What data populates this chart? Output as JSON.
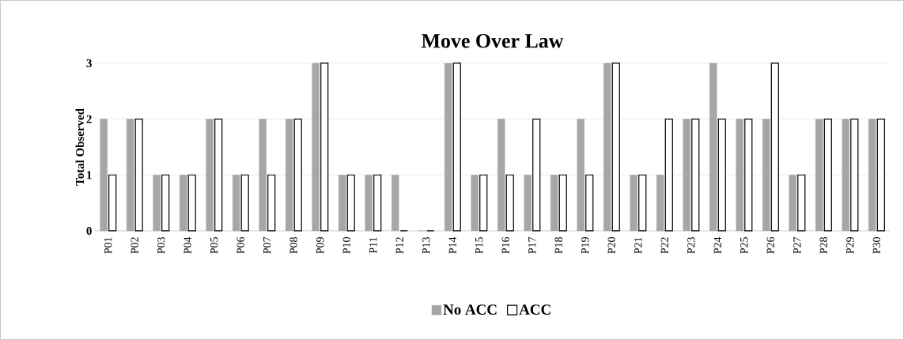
{
  "chart_data": {
    "type": "bar",
    "title": "Move Over Law",
    "ylabel": "Total Observed",
    "categories": [
      "P01",
      "P02",
      "P03",
      "P04",
      "P05",
      "P06",
      "P07",
      "P08",
      "P09",
      "P10",
      "P11",
      "P12",
      "P13",
      "P14",
      "P15",
      "P16",
      "P17",
      "P18",
      "P19",
      "P20",
      "P21",
      "P22",
      "P23",
      "P24",
      "P25",
      "P26",
      "P27",
      "P28",
      "P29",
      "P30"
    ],
    "series": [
      {
        "name": "No ACC",
        "color": "#a6a6a6",
        "values": [
          2,
          2,
          1,
          1,
          2,
          1,
          2,
          2,
          3,
          1,
          1,
          1,
          0,
          3,
          1,
          2,
          1,
          1,
          2,
          3,
          1,
          1,
          2,
          3,
          2,
          2,
          1,
          2,
          2,
          2
        ]
      },
      {
        "name": "ACC",
        "color": "#000000",
        "values": [
          1,
          2,
          1,
          1,
          2,
          1,
          1,
          2,
          3,
          1,
          1,
          0,
          0,
          3,
          1,
          1,
          2,
          1,
          1,
          3,
          1,
          2,
          2,
          2,
          2,
          3,
          1,
          2,
          2,
          2
        ]
      }
    ],
    "ylim": [
      0,
      3
    ],
    "yticks": [
      0,
      1,
      2,
      3
    ],
    "grid": "y",
    "legend": "bottom"
  }
}
